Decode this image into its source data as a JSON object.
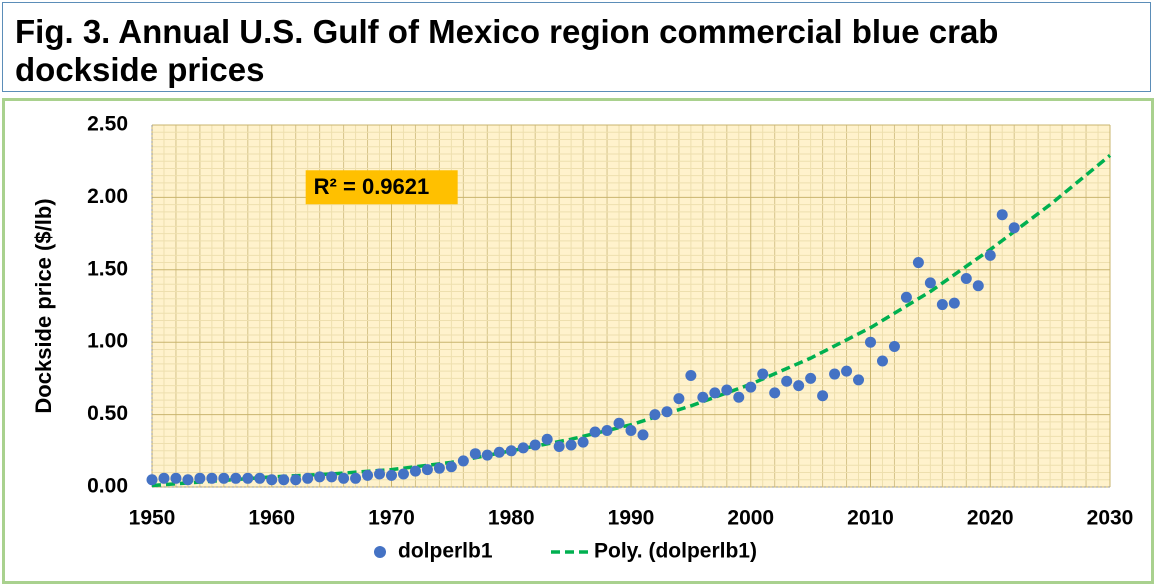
{
  "chart_data": {
    "type": "scatter",
    "title": "Fig. 3. Annual U.S. Gulf of Mexico region commercial blue crab dockside prices",
    "ylabel": "Dockside price ($/lb)",
    "annotation": "R² = 0.9621",
    "x": [
      1950,
      1951,
      1952,
      1953,
      1954,
      1955,
      1956,
      1957,
      1958,
      1959,
      1960,
      1961,
      1962,
      1963,
      1964,
      1965,
      1966,
      1967,
      1968,
      1969,
      1970,
      1971,
      1972,
      1973,
      1974,
      1975,
      1976,
      1977,
      1978,
      1979,
      1980,
      1981,
      1982,
      1983,
      1984,
      1985,
      1986,
      1987,
      1988,
      1989,
      1990,
      1991,
      1992,
      1993,
      1994,
      1995,
      1996,
      1997,
      1998,
      1999,
      2000,
      2001,
      2002,
      2003,
      2004,
      2005,
      2006,
      2007,
      2008,
      2009,
      2010,
      2011,
      2012,
      2013,
      2014,
      2015,
      2016,
      2017,
      2018,
      2019,
      2020,
      2021,
      2022
    ],
    "series": [
      {
        "name": "dolperlb1",
        "color": "#4472c4",
        "values": [
          0.05,
          0.06,
          0.06,
          0.05,
          0.06,
          0.06,
          0.06,
          0.06,
          0.06,
          0.06,
          0.05,
          0.05,
          0.05,
          0.06,
          0.07,
          0.07,
          0.06,
          0.06,
          0.08,
          0.09,
          0.08,
          0.09,
          0.11,
          0.12,
          0.13,
          0.14,
          0.18,
          0.23,
          0.22,
          0.24,
          0.25,
          0.27,
          0.29,
          0.33,
          0.28,
          0.29,
          0.31,
          0.38,
          0.39,
          0.44,
          0.39,
          0.36,
          0.5,
          0.52,
          0.61,
          0.77,
          0.62,
          0.65,
          0.67,
          0.62,
          0.69,
          0.78,
          0.65,
          0.73,
          0.7,
          0.75,
          0.63,
          0.78,
          0.8,
          0.74,
          1.0,
          0.87,
          0.97,
          1.31,
          1.55,
          1.41,
          1.26,
          1.27,
          1.44,
          1.39,
          1.6,
          1.88,
          1.79
        ]
      }
    ],
    "trendline": {
      "name": "Poly. (dolperlb1)",
      "color": "#00b050",
      "x": [
        1950,
        1955,
        1960,
        1965,
        1970,
        1975,
        1980,
        1985,
        1990,
        1995,
        2000,
        2005,
        2010,
        2015,
        2020,
        2025,
        2030
      ],
      "values": [
        0.01,
        0.04,
        0.07,
        0.09,
        0.12,
        0.17,
        0.25,
        0.33,
        0.43,
        0.56,
        0.71,
        0.89,
        1.1,
        1.35,
        1.64,
        1.95,
        2.29
      ]
    },
    "xlim": [
      1950,
      2030
    ],
    "ylim": [
      0,
      2.5
    ],
    "xticks": [
      1950,
      1960,
      1970,
      1980,
      1990,
      2000,
      2010,
      2020,
      2030
    ],
    "yticks": [
      {
        "value": 0,
        "label": "0.00"
      },
      {
        "value": 0.5,
        "label": "0.50"
      },
      {
        "value": 1,
        "label": "1.00"
      },
      {
        "value": 1.5,
        "label": "1.50"
      },
      {
        "value": 2,
        "label": "2.00"
      },
      {
        "value": 2.5,
        "label": "2.50"
      }
    ],
    "grid": true,
    "legend": "bottom"
  }
}
